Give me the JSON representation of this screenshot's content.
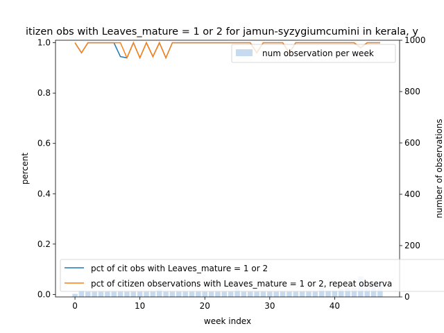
{
  "chart_data": {
    "type": "line",
    "title": "itizen obs with Leaves_mature = 1 or 2 for jamun-syzygiumcumini in kerala, y",
    "xlabel": "week index",
    "ylabel": "percent",
    "y2label": "number of observations",
    "xlim": [
      -3,
      50
    ],
    "ylim": [
      -0.01,
      1.01
    ],
    "y2lim": [
      0,
      1000
    ],
    "x_ticks": [
      0,
      10,
      20,
      30,
      40
    ],
    "y_ticks": [
      0.0,
      0.2,
      0.4,
      0.6,
      0.8,
      1.0
    ],
    "y2_ticks": [
      0,
      200,
      400,
      600,
      800,
      1000
    ],
    "x": [
      0,
      1,
      2,
      3,
      4,
      5,
      6,
      7,
      8,
      9,
      10,
      11,
      12,
      13,
      14,
      15,
      16,
      17,
      18,
      19,
      20,
      21,
      22,
      23,
      24,
      25,
      26,
      27,
      28,
      29,
      30,
      31,
      32,
      33,
      34,
      35,
      36,
      37,
      38,
      39,
      40,
      41,
      42,
      43,
      44,
      45,
      46,
      47
    ],
    "series": [
      {
        "name": "pct of cit obs with Leaves_mature = 1 or 2",
        "color": "#1f77b4",
        "values": [
          1,
          0.96,
          1,
          1,
          1,
          1,
          1,
          0.945,
          0.94,
          1,
          0.94,
          1,
          0.945,
          1,
          0.94,
          1,
          1,
          1,
          1,
          1,
          1,
          1,
          1,
          1,
          1,
          1,
          1,
          1,
          0.96,
          1,
          1,
          1,
          1,
          0.96,
          1,
          1,
          1,
          1,
          1,
          1,
          1,
          1,
          1,
          1,
          0.98,
          1,
          1,
          1
        ]
      },
      {
        "name": "pct of citizen observations with Leaves_mature = 1 or 2, repeat observa",
        "color": "#ff7f0e",
        "values": [
          1,
          0.96,
          1,
          1,
          1,
          1,
          1,
          1,
          0.94,
          1,
          0.94,
          1,
          0.945,
          1,
          0.94,
          1,
          1,
          1,
          1,
          1,
          1,
          1,
          1,
          1,
          1,
          1,
          1,
          1,
          0.96,
          1,
          1,
          1,
          1,
          0.96,
          1,
          1,
          1,
          1,
          1,
          1,
          1,
          1,
          1,
          1,
          0.98,
          1,
          1,
          1
        ]
      }
    ],
    "bars": {
      "name": "num observation per week",
      "color": "#c6dbef",
      "values": [
        12,
        25,
        20,
        20,
        20,
        20,
        20,
        20,
        20,
        20,
        20,
        20,
        20,
        30,
        20,
        20,
        20,
        20,
        20,
        20,
        20,
        20,
        20,
        20,
        20,
        40,
        20,
        20,
        20,
        20,
        20,
        20,
        20,
        20,
        20,
        20,
        20,
        20,
        45,
        25,
        25,
        30,
        35,
        35,
        80,
        55,
        55,
        50
      ]
    },
    "legend_upper_position": "top-right",
    "legend_lower_position": "bottom-left",
    "grid": false
  }
}
